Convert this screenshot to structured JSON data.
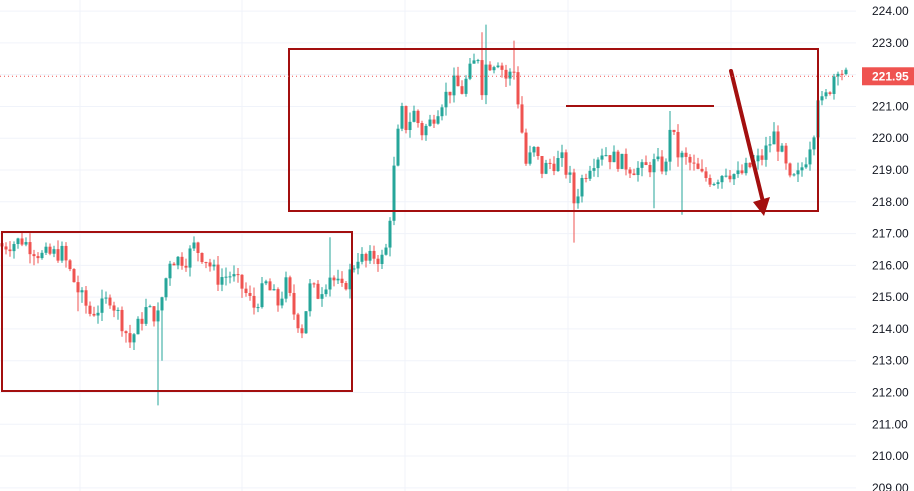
{
  "chart_data": {
    "type": "candlestick",
    "y_axis": {
      "ticks": [
        "209.00",
        "210.00",
        "211.00",
        "212.00",
        "213.00",
        "214.00",
        "215.00",
        "216.00",
        "217.00",
        "218.00",
        "219.00",
        "220.00",
        "221.00",
        "222.00",
        "223.00",
        "224.00"
      ],
      "range": [
        208.9,
        224.35
      ],
      "position": "right"
    },
    "last_price": {
      "label": "221.95",
      "value": 221.95
    },
    "price_path": [
      [
        0,
        216.6
      ],
      [
        5,
        216.8
      ],
      [
        10,
        216.3
      ],
      [
        15,
        216.4
      ],
      [
        19,
        215.2
      ],
      [
        22,
        214.5
      ],
      [
        25,
        214.7
      ],
      [
        27,
        215.0
      ],
      [
        30,
        214.2
      ],
      [
        32,
        213.6
      ],
      [
        36,
        214.6
      ],
      [
        39,
        214.4
      ],
      [
        42,
        216.2
      ],
      [
        46,
        216.2
      ],
      [
        48,
        216.6
      ],
      [
        51,
        216.2
      ],
      [
        54,
        215.6
      ],
      [
        57,
        215.7
      ],
      [
        60,
        215.3
      ],
      [
        63,
        214.7
      ],
      [
        66,
        215.4
      ],
      [
        69,
        214.8
      ],
      [
        71,
        215.4
      ],
      [
        73,
        214.5
      ],
      [
        75,
        214.0
      ],
      [
        77,
        215.3
      ],
      [
        79,
        215.1
      ],
      [
        82,
        215.7
      ],
      [
        85,
        215.2
      ],
      [
        89,
        216.3
      ],
      [
        91,
        216.1
      ],
      [
        93,
        216.3
      ],
      [
        95,
        216.2
      ],
      [
        96,
        216.5
      ],
      [
        97,
        217.6
      ],
      [
        98,
        219.0
      ],
      [
        99,
        220.1
      ],
      [
        100,
        220.8
      ],
      [
        101,
        220.4
      ],
      [
        103,
        220.8
      ],
      [
        105,
        220.2
      ],
      [
        107,
        220.5
      ],
      [
        110,
        221.2
      ],
      [
        113,
        221.7
      ],
      [
        115,
        221.5
      ],
      [
        117,
        222.1
      ],
      [
        119,
        222.6
      ],
      [
        120,
        221.6
      ],
      [
        121,
        222.3
      ],
      [
        124,
        222.5
      ],
      [
        126,
        221.9
      ],
      [
        128,
        222.1
      ],
      [
        129,
        221.2
      ],
      [
        130,
        220.2
      ],
      [
        131,
        219.2
      ],
      [
        133,
        219.6
      ],
      [
        135,
        219.0
      ],
      [
        137,
        219.2
      ],
      [
        140,
        219.3
      ],
      [
        142,
        218.7
      ],
      [
        143,
        218.0
      ],
      [
        145,
        218.7
      ],
      [
        147,
        219.2
      ],
      [
        150,
        219.6
      ],
      [
        154,
        219.3
      ],
      [
        157,
        219.1
      ],
      [
        160,
        219.0
      ],
      [
        163,
        219.2
      ],
      [
        166,
        219.1
      ],
      [
        167,
        220.4
      ],
      [
        169,
        219.5
      ],
      [
        172,
        219.2
      ],
      [
        175,
        218.8
      ],
      [
        178,
        218.7
      ],
      [
        181,
        219.0
      ],
      [
        184,
        218.8
      ],
      [
        187,
        219.1
      ],
      [
        190,
        219.4
      ],
      [
        193,
        220.1
      ],
      [
        195,
        219.5
      ],
      [
        197,
        218.6
      ],
      [
        199,
        218.8
      ],
      [
        201,
        219.4
      ],
      [
        203,
        220.3
      ],
      [
        204,
        221.4
      ],
      [
        205,
        221.1
      ],
      [
        206,
        221.3
      ],
      [
        207,
        221.6
      ],
      [
        208,
        222.0
      ],
      [
        209,
        222.3
      ],
      [
        210,
        222.1
      ],
      [
        211,
        221.95
      ]
    ]
  }
}
